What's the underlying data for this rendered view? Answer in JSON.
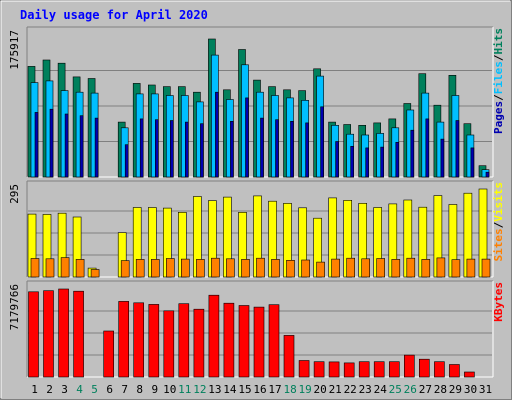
{
  "chart_data": {
    "type": "bar",
    "title": "Daily usage for April 2020",
    "categories": [
      "1",
      "2",
      "3",
      "4",
      "5",
      "6",
      "7",
      "8",
      "9",
      "10",
      "11",
      "12",
      "13",
      "14",
      "15",
      "16",
      "17",
      "18",
      "19",
      "20",
      "21",
      "22",
      "23",
      "24",
      "25",
      "26",
      "27",
      "28",
      "29",
      "30",
      "31"
    ],
    "weekend_days": [
      "4",
      "5",
      "11",
      "12",
      "18",
      "19",
      "25",
      "26"
    ],
    "panels": [
      {
        "id": "hits",
        "max_label": "175917",
        "ymax": 175917,
        "right_labels": [
          "Pages",
          "Files",
          "Hits"
        ],
        "series": [
          {
            "name": "Hits",
            "color": "#00805c",
            "values": [
              137000,
              145000,
              141000,
              124000,
              122000,
              null,
              68000,
              116000,
              114000,
              112000,
              112000,
              105000,
              171000,
              108000,
              158000,
              120000,
              112000,
              108000,
              107000,
              134000,
              68000,
              65000,
              64000,
              67000,
              72000,
              91000,
              128000,
              89000,
              126000,
              66000,
              14000
            ]
          },
          {
            "name": "Files",
            "color": "#00bfff",
            "values": [
              117000,
              119000,
              107000,
              105000,
              104000,
              null,
              61000,
              103000,
              103000,
              101000,
              101000,
              93000,
              151000,
              96000,
              139000,
              105000,
              101000,
              98000,
              95000,
              125000,
              64000,
              53000,
              52000,
              54000,
              61000,
              83000,
              104000,
              68000,
              101000,
              52000,
              9000
            ]
          },
          {
            "name": "Pages",
            "color": "#0000b0",
            "values": [
              80000,
              84000,
              78000,
              76000,
              73000,
              null,
              40000,
              72000,
              71000,
              70000,
              68000,
              66000,
              105000,
              69000,
              98000,
              73000,
              71000,
              69000,
              67000,
              87000,
              44000,
              38000,
              36000,
              37000,
              43000,
              58000,
              72000,
              47000,
              70000,
              36000,
              6000
            ]
          }
        ]
      },
      {
        "id": "visits",
        "max_label": "295",
        "ymax": 295,
        "right_labels": [
          "Sites",
          "Visits"
        ],
        "series": [
          {
            "name": "Visits",
            "color": "#ffff00",
            "values": [
              211,
              210,
              214,
              201,
              30,
              null,
              149,
              233,
              233,
              231,
              217,
              270,
              256,
              268,
              217,
              272,
              254,
              247,
              232,
              197,
              265,
              257,
              247,
              233,
              245,
              258,
              234,
              273,
              243,
              281,
              295
            ]
          },
          {
            "name": "Sites",
            "color": "#ff8000",
            "values": [
              62,
              61,
              65,
              59,
              25,
              null,
              55,
              59,
              59,
              62,
              60,
              59,
              63,
              61,
              59,
              63,
              59,
              56,
              57,
              50,
              60,
              63,
              61,
              62,
              59,
              63,
              59,
              64,
              58,
              60,
              60
            ]
          }
        ]
      },
      {
        "id": "kbytes",
        "max_label": "7179766",
        "ymax": 7179766,
        "right_labels": [
          "KBytes"
        ],
        "series": [
          {
            "name": "KBytes",
            "color": "#ff0000",
            "values": [
              6950000,
              7040000,
              7179766,
              7000000,
              null,
              3750000,
              6170000,
              6050000,
              5920000,
              5400000,
              5980000,
              5530000,
              6670000,
              6020000,
              5830000,
              5700000,
              5900000,
              3390000,
              1350000,
              1250000,
              1230000,
              1150000,
              1250000,
              1250000,
              1250000,
              1790000,
              1450000,
              1250000,
              1020000,
              410000,
              null
            ]
          }
        ]
      }
    ],
    "colors": {
      "background": "#c0c0c0",
      "plot_border_light": "#ffffff",
      "plot_border_dark": "#808080",
      "gridline": "#808080",
      "title": "#0000ff",
      "weekday_label": "#000000",
      "weekend_label": "#00805c"
    }
  }
}
